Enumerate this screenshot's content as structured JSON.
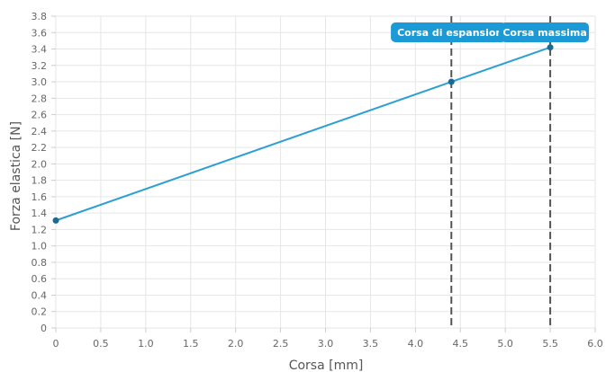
{
  "chart_data": {
    "type": "line",
    "xlabel": "Corsa [mm]",
    "ylabel": "Forza elastica [N]",
    "xlim": [
      0,
      6
    ],
    "ylim": [
      0,
      3.8
    ],
    "x_ticks": [
      "0",
      "0.5",
      "1.0",
      "1.5",
      "2.0",
      "2.5",
      "3.0",
      "3.5",
      "4.0",
      "4.5",
      "5.0",
      "5.5",
      "6.0"
    ],
    "y_ticks": [
      "0",
      "0.2",
      "0.4",
      "0.6",
      "0.8",
      "1.0",
      "1.2",
      "1.4",
      "1.6",
      "1.8",
      "2.0",
      "2.2",
      "2.4",
      "2.6",
      "2.8",
      "3.0",
      "3.2",
      "3.4",
      "3.6",
      "3.8"
    ],
    "grid": true,
    "series": [
      {
        "color": "#2b9fd4",
        "points": [
          {
            "x": 0,
            "y": 1.31
          },
          {
            "x": 4.4,
            "y": 3.0
          },
          {
            "x": 5.5,
            "y": 3.42
          }
        ]
      }
    ],
    "vertical_markers": [
      {
        "x": 4.4,
        "label": "Corsa di espansione"
      },
      {
        "x": 5.5,
        "label": "Corsa massima"
      }
    ],
    "colors": {
      "line": "#2b9fd4",
      "marker": "#1a6a96",
      "annotation_bg": "#1b9ad6",
      "grid": "#e6e6e6",
      "dash": "#555555"
    }
  }
}
